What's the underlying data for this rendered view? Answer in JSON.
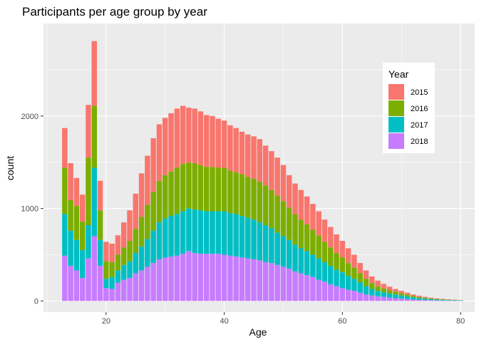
{
  "chart_data": {
    "type": "bar",
    "stacked": true,
    "title": "Participants per age group by year",
    "xlabel": "Age",
    "ylabel": "count",
    "xlim": [
      9.4,
      82.4
    ],
    "ylim": [
      -120,
      3000
    ],
    "x_ticks": [
      20,
      40,
      60,
      80
    ],
    "y_ticks": [
      0,
      1000,
      2000
    ],
    "grid": true,
    "legend": {
      "title": "Year",
      "position": "right-inside"
    },
    "series": [
      {
        "name": "2018",
        "color": "#C77CFF",
        "values": [
          490,
          380,
          330,
          250,
          460,
          700,
          380,
          140,
          130,
          200,
          230,
          250,
          300,
          330,
          370,
          410,
          450,
          470,
          480,
          490,
          510,
          540,
          520,
          510,
          510,
          510,
          510,
          500,
          490,
          480,
          470,
          460,
          450,
          440,
          420,
          410,
          390,
          370,
          350,
          320,
          300,
          280,
          260,
          230,
          210,
          180,
          160,
          140,
          120,
          110,
          90,
          70,
          60,
          50,
          45,
          35,
          30,
          25,
          20,
          15,
          12,
          10,
          8,
          6,
          5,
          4,
          3,
          2
        ]
      },
      {
        "name": "2017",
        "color": "#00BFC4",
        "values": [
          450,
          380,
          330,
          300,
          360,
          740,
          280,
          100,
          130,
          130,
          160,
          180,
          220,
          260,
          300,
          350,
          400,
          420,
          440,
          450,
          460,
          460,
          470,
          470,
          460,
          460,
          460,
          470,
          460,
          460,
          450,
          440,
          430,
          410,
          400,
          380,
          350,
          330,
          310,
          290,
          270,
          260,
          240,
          230,
          210,
          200,
          180,
          170,
          150,
          130,
          110,
          90,
          70,
          60,
          50,
          45,
          40,
          35,
          30,
          25,
          20,
          15,
          12,
          10,
          8,
          6,
          5,
          4
        ]
      },
      {
        "name": "2016",
        "color": "#7CAE00",
        "values": [
          500,
          330,
          370,
          310,
          730,
          670,
          320,
          190,
          160,
          170,
          190,
          220,
          260,
          320,
          370,
          420,
          450,
          470,
          480,
          500,
          510,
          500,
          500,
          490,
          480,
          480,
          470,
          470,
          460,
          450,
          450,
          440,
          440,
          440,
          430,
          410,
          400,
          380,
          350,
          330,
          310,
          290,
          270,
          250,
          220,
          200,
          180,
          160,
          140,
          120,
          100,
          80,
          65,
          50,
          40,
          35,
          30,
          25,
          20,
          15,
          12,
          10,
          8,
          6,
          5,
          4,
          3,
          2
        ]
      },
      {
        "name": "2015",
        "color": "#F8766D",
        "values": [
          430,
          400,
          300,
          290,
          570,
          700,
          320,
          210,
          200,
          210,
          270,
          330,
          380,
          470,
          530,
          580,
          610,
          620,
          630,
          640,
          630,
          590,
          590,
          580,
          560,
          550,
          530,
          510,
          490,
          480,
          460,
          460,
          460,
          460,
          430,
          420,
          410,
          390,
          350,
          330,
          320,
          300,
          280,
          260,
          240,
          220,
          200,
          180,
          160,
          140,
          110,
          90,
          70,
          60,
          50,
          40,
          30,
          25,
          20,
          15,
          12,
          10,
          8,
          6,
          5,
          4,
          3,
          2
        ]
      }
    ]
  }
}
